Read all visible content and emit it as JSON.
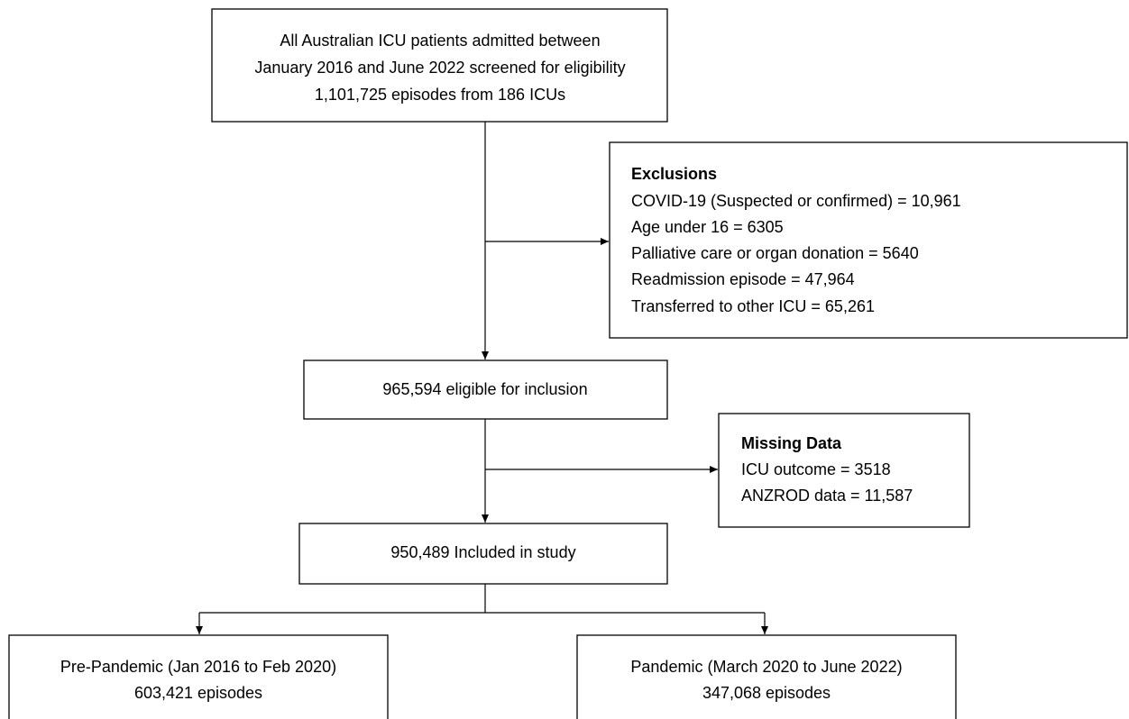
{
  "nodes": [
    {
      "lines": [
        "All Australian ICU patients admitted between",
        "January 2016 and June 2022 screened for eligibility",
        "1,101,725 episodes from 186 ICUs"
      ]
    },
    {
      "title": "Exclusions",
      "lines": [
        "COVID-19 (Suspected or confirmed) = 10,961",
        "Age under 16 = 6305",
        "Palliative care or organ donation = 5640",
        "Readmission episode = 47,964",
        "Transferred to other ICU = 65,261"
      ]
    },
    {
      "lines": [
        "965,594 eligible for inclusion"
      ]
    },
    {
      "title": "Missing Data",
      "lines": [
        "ICU outcome = 3518",
        "ANZROD data = 11,587"
      ]
    },
    {
      "lines": [
        "950,489 Included in study"
      ]
    },
    {
      "lines": [
        "Pre-Pandemic (Jan 2016 to Feb 2020)",
        "603,421 episodes"
      ]
    },
    {
      "lines": [
        "Pandemic (March 2020 to June 2022)",
        "347,068 episodes"
      ]
    }
  ]
}
